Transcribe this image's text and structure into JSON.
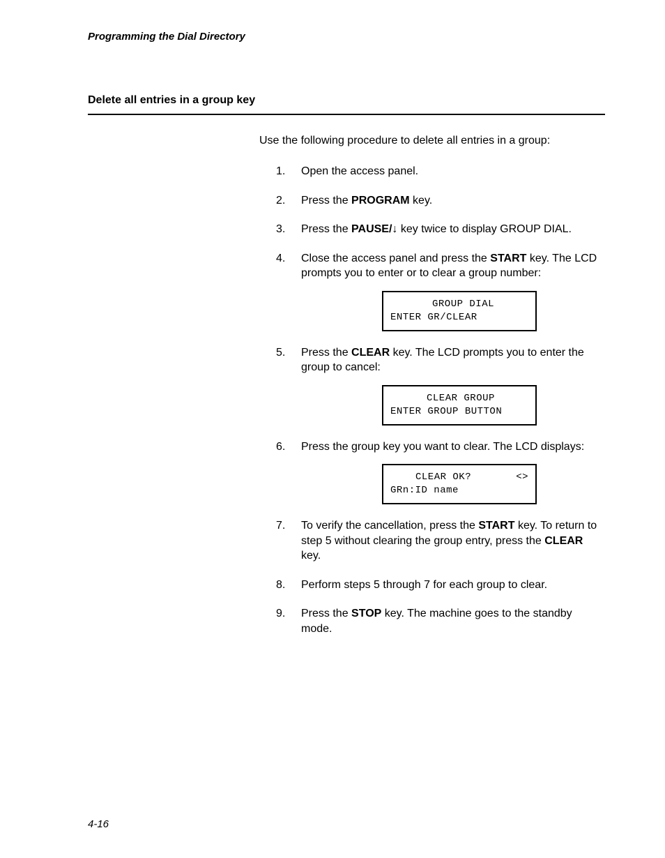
{
  "header": {
    "title": "Programming the Dial Directory"
  },
  "section": {
    "title": "Delete all entries in a group key"
  },
  "intro": "Use the following procedure to delete all entries in a group:",
  "steps": {
    "s1": "Open the access panel.",
    "s2_pre": "Press the ",
    "s2_key": "PROGRAM",
    "s2_post": " key.",
    "s3_pre": "Press the ",
    "s3_key": "PAUSE/",
    "s3_arrow": "↓",
    "s3_post": " key twice to display GROUP DIAL.",
    "s4_pre": "Close the access panel and press the ",
    "s4_key": "START",
    "s4_post": " key.  The LCD prompts you to enter or to clear a group number:",
    "s5_pre": "Press the ",
    "s5_key": "CLEAR",
    "s5_post": " key.  The LCD prompts you to enter the group to cancel:",
    "s6": "Press the group key you want to clear.  The LCD displays:",
    "s7_pre": "To verify the cancellation, press the ",
    "s7_key1": "START",
    "s7_mid": " key.  To return to step 5 without clearing the group entry, press the ",
    "s7_key2": "CLEAR",
    "s7_post": " key.",
    "s8": "Perform steps 5 through 7 for each group to clear.",
    "s9_pre": "Press the ",
    "s9_key": "STOP",
    "s9_post": " key.  The machine goes to the standby mode."
  },
  "lcd1": {
    "line1": "GROUP DIAL",
    "line2": "ENTER GR/CLEAR"
  },
  "lcd2": {
    "line1": "CLEAR GROUP",
    "line2": "ENTER GROUP BUTTON"
  },
  "lcd3": {
    "line1": "CLEAR OK?",
    "arrows": "<>",
    "line2": "GRn:ID name"
  },
  "footer": {
    "page": "4-16"
  }
}
